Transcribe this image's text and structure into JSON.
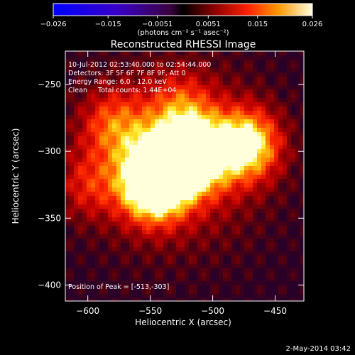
{
  "chart_data": {
    "type": "heatmap",
    "title": "Reconstructed RHESSI Image",
    "xlabel": "Heliocentric X (arcsec)",
    "ylabel": "Heliocentric Y (arcsec)",
    "xlim": [
      -618,
      -427
    ],
    "ylim": [
      -412,
      -225
    ],
    "x_ticks": [
      -600,
      -550,
      -500,
      -450
    ],
    "x_tick_labels": [
      "−600",
      "−550",
      "−500",
      "−450"
    ],
    "y_ticks": [
      -250,
      -300,
      -350,
      -400
    ],
    "y_tick_labels": [
      "−250",
      "−300",
      "−350",
      "−400"
    ],
    "annotation_lines": [
      "10-Jul-2012 02:53:40.000 to 02:54:44.000",
      "Detectors: 3F 5F 6F 7F 8F 9F, Att 0",
      "Energy Range: 6.0 - 12.0 keV",
      "Clean     Total counts: 1.44E+04"
    ],
    "peak_label": "Position of Peak = [-513,-303]",
    "peak": [
      -513,
      -303
    ],
    "sources": [
      {
        "x": -542,
        "y": -312,
        "value": 0.026
      },
      {
        "x": -513,
        "y": -303,
        "value": 0.026
      },
      {
        "x": -472,
        "y": -295,
        "value": 0.024
      },
      {
        "x": -548,
        "y": -328,
        "value": 0.022
      },
      {
        "x": -580,
        "y": -280,
        "value": 0.012
      },
      {
        "x": -600,
        "y": -325,
        "value": 0.009
      },
      {
        "x": -525,
        "y": -268,
        "value": 0.01
      }
    ],
    "colorbar": {
      "range": [
        -0.026,
        0.026
      ],
      "tick_labels": [
        "−0.026",
        "−0.015",
        "−0.0051",
        "0.0051",
        "0.015",
        "0.026"
      ],
      "tick_values": [
        -0.026,
        -0.015,
        -0.0051,
        0.0051,
        0.015,
        0.026
      ],
      "unit_label": "(photons cm⁻² s⁻¹ asec⁻²)"
    },
    "footer_date": "2-May-2014 03:42"
  }
}
